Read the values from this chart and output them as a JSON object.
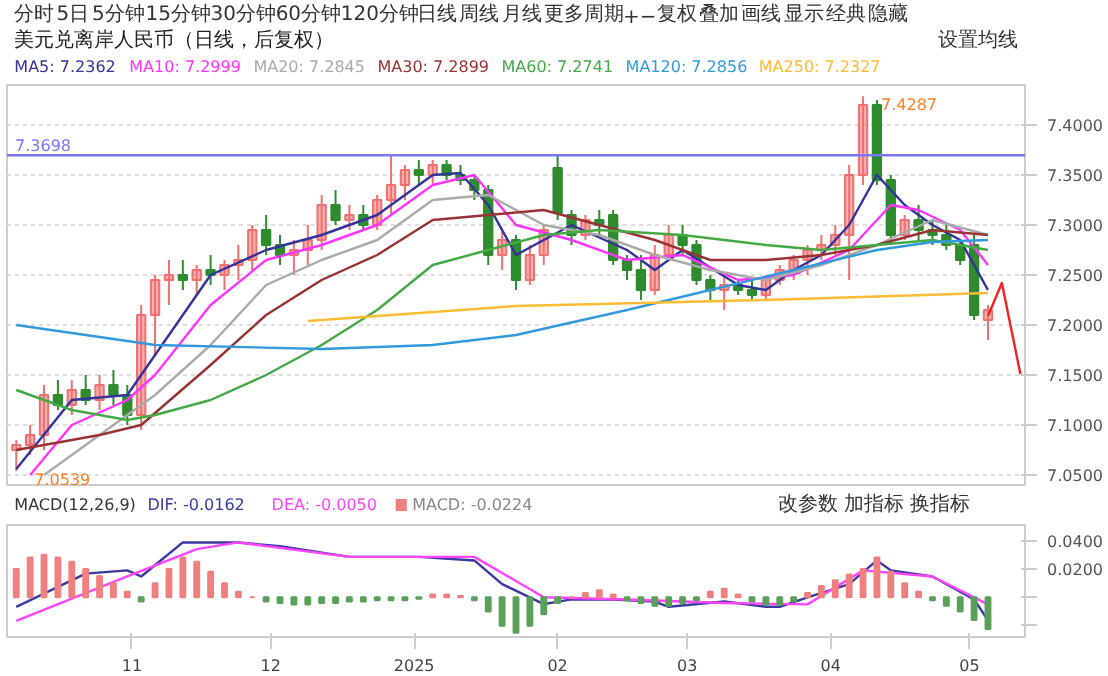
{
  "chart_data": [
    {
      "type": "candlestick",
      "title": "美元兑离岸人民币（日线，后复权）",
      "annotations": [
        "分时",
        "5日",
        "5分钟",
        "15分钟",
        "30分钟",
        "60分钟",
        "120分钟",
        "日线",
        "周线",
        "月线",
        "更多周期",
        "+",
        "−",
        "复权",
        "叠加",
        "画线",
        "显示",
        "经典",
        "隐藏",
        "设置均线",
        {
          "text": "7.4287",
          "x": "2025-04-08",
          "y": 7.4287
        },
        {
          "text": "7.0539",
          "x": "2024-10-07",
          "y": 7.0539
        }
      ],
      "x": [
        "2024-10-07",
        "2024-10-10",
        "2024-10-13",
        "2024-10-16",
        "2024-10-19",
        "2024-10-22",
        "2024-10-25",
        "2024-10-28",
        "2024-10-31",
        "2024-11-03",
        "2024-11-06",
        "2024-11-09",
        "2024-11-12",
        "2024-11-15",
        "2024-11-18",
        "2024-11-21",
        "2024-11-24",
        "2024-11-27",
        "2024-11-30",
        "2024-12-03",
        "2024-12-06",
        "2024-12-09",
        "2024-12-12",
        "2024-12-15",
        "2024-12-18",
        "2024-12-21",
        "2024-12-24",
        "2024-12-27",
        "2024-12-30",
        "2025-01-02",
        "2025-01-05",
        "2025-01-08",
        "2025-01-11",
        "2025-01-14",
        "2025-01-17",
        "2025-01-20",
        "2025-01-23",
        "2025-01-26",
        "2025-01-29",
        "2025-02-01",
        "2025-02-04",
        "2025-02-07",
        "2025-02-10",
        "2025-02-13",
        "2025-02-16",
        "2025-02-19",
        "2025-02-22",
        "2025-02-25",
        "2025-02-28",
        "2025-03-03",
        "2025-03-06",
        "2025-03-09",
        "2025-03-12",
        "2025-03-15",
        "2025-03-18",
        "2025-03-21",
        "2025-03-24",
        "2025-03-27",
        "2025-03-30",
        "2025-04-02",
        "2025-04-05",
        "2025-04-08",
        "2025-04-11",
        "2025-04-14",
        "2025-04-17",
        "2025-04-20",
        "2025-04-23",
        "2025-04-26",
        "2025-04-29",
        "2025-05-02",
        "2025-05-05"
      ],
      "ohlc": [
        [
          7.075,
          7.085,
          7.0539,
          7.08
        ],
        [
          7.08,
          7.1,
          7.07,
          7.09
        ],
        [
          7.09,
          7.14,
          7.075,
          7.13
        ],
        [
          7.13,
          7.145,
          7.115,
          7.12
        ],
        [
          7.12,
          7.145,
          7.11,
          7.135
        ],
        [
          7.135,
          7.15,
          7.12,
          7.125
        ],
        [
          7.125,
          7.15,
          7.115,
          7.14
        ],
        [
          7.14,
          7.155,
          7.12,
          7.13
        ],
        [
          7.13,
          7.14,
          7.1,
          7.11
        ],
        [
          7.11,
          7.22,
          7.095,
          7.21
        ],
        [
          7.21,
          7.25,
          7.17,
          7.245
        ],
        [
          7.245,
          7.265,
          7.22,
          7.25
        ],
        [
          7.25,
          7.265,
          7.235,
          7.245
        ],
        [
          7.245,
          7.26,
          7.23,
          7.255
        ],
        [
          7.255,
          7.27,
          7.24,
          7.25
        ],
        [
          7.25,
          7.265,
          7.235,
          7.26
        ],
        [
          7.26,
          7.28,
          7.245,
          7.265
        ],
        [
          7.265,
          7.3,
          7.255,
          7.295
        ],
        [
          7.295,
          7.31,
          7.27,
          7.28
        ],
        [
          7.28,
          7.29,
          7.26,
          7.27
        ],
        [
          7.27,
          7.285,
          7.25,
          7.275
        ],
        [
          7.275,
          7.3,
          7.26,
          7.285
        ],
        [
          7.285,
          7.33,
          7.275,
          7.32
        ],
        [
          7.32,
          7.335,
          7.3,
          7.305
        ],
        [
          7.305,
          7.32,
          7.295,
          7.31
        ],
        [
          7.31,
          7.32,
          7.295,
          7.3
        ],
        [
          7.3,
          7.33,
          7.295,
          7.325
        ],
        [
          7.325,
          7.37,
          7.31,
          7.34
        ],
        [
          7.34,
          7.36,
          7.325,
          7.355
        ],
        [
          7.355,
          7.365,
          7.34,
          7.35
        ],
        [
          7.35,
          7.365,
          7.34,
          7.36
        ],
        [
          7.36,
          7.365,
          7.345,
          7.35
        ],
        [
          7.35,
          7.36,
          7.34,
          7.345
        ],
        [
          7.345,
          7.35,
          7.325,
          7.335
        ],
        [
          7.335,
          7.34,
          7.26,
          7.27
        ],
        [
          7.27,
          7.295,
          7.255,
          7.285
        ],
        [
          7.285,
          7.29,
          7.235,
          7.245
        ],
        [
          7.245,
          7.28,
          7.24,
          7.27
        ],
        [
          7.27,
          7.3,
          7.26,
          7.295
        ],
        [
          7.357,
          7.37,
          7.305,
          7.312
        ],
        [
          7.31,
          7.315,
          7.28,
          7.29
        ],
        [
          7.29,
          7.31,
          7.285,
          7.305
        ],
        [
          7.305,
          7.315,
          7.29,
          7.3
        ],
        [
          7.31,
          7.315,
          7.26,
          7.265
        ],
        [
          7.265,
          7.27,
          7.245,
          7.255
        ],
        [
          7.255,
          7.27,
          7.225,
          7.235
        ],
        [
          7.235,
          7.28,
          7.23,
          7.27
        ],
        [
          7.27,
          7.3,
          7.265,
          7.29
        ],
        [
          7.29,
          7.3,
          7.27,
          7.28
        ],
        [
          7.28,
          7.285,
          7.24,
          7.245
        ],
        [
          7.245,
          7.25,
          7.225,
          7.235
        ],
        [
          7.235,
          7.25,
          7.215,
          7.24
        ],
        [
          7.24,
          7.245,
          7.23,
          7.235
        ],
        [
          7.235,
          7.245,
          7.225,
          7.23
        ],
        [
          7.23,
          7.25,
          7.225,
          7.245
        ],
        [
          7.245,
          7.26,
          7.24,
          7.255
        ],
        [
          7.255,
          7.27,
          7.245,
          7.265
        ],
        [
          7.265,
          7.28,
          7.25,
          7.275
        ],
        [
          7.275,
          7.29,
          7.265,
          7.28
        ],
        [
          7.28,
          7.3,
          7.27,
          7.29
        ],
        [
          7.29,
          7.36,
          7.245,
          7.35
        ],
        [
          7.35,
          7.4287,
          7.34,
          7.42
        ],
        [
          7.42,
          7.425,
          7.34,
          7.345
        ],
        [
          7.345,
          7.35,
          7.28,
          7.29
        ],
        [
          7.29,
          7.31,
          7.285,
          7.305
        ],
        [
          7.305,
          7.32,
          7.285,
          7.295
        ],
        [
          7.295,
          7.305,
          7.28,
          7.29
        ],
        [
          7.29,
          7.3,
          7.275,
          7.28
        ],
        [
          7.28,
          7.285,
          7.26,
          7.265
        ],
        [
          7.28,
          7.29,
          7.205,
          7.21
        ],
        [
          7.205,
          7.22,
          7.185,
          7.215
        ]
      ],
      "colors": [
        "#f07070",
        "#f07070",
        "#f07070",
        "#2e8b2e",
        "#f07070",
        "#2e8b2e",
        "#f07070",
        "#2e8b2e",
        "#2e8b2e",
        "#f07070",
        "#f07070",
        "#f07070",
        "#2e8b2e",
        "#f07070",
        "#2e8b2e",
        "#f07070",
        "#f07070",
        "#f07070",
        "#2e8b2e",
        "#2e8b2e",
        "#f07070",
        "#f07070",
        "#f07070",
        "#2e8b2e",
        "#f07070",
        "#2e8b2e",
        "#f07070",
        "#f07070",
        "#f07070",
        "#2e8b2e",
        "#f07070",
        "#2e8b2e",
        "#2e8b2e",
        "#2e8b2e",
        "#2e8b2e",
        "#f07070",
        "#2e8b2e",
        "#f07070",
        "#f07070",
        "#2e8b2e",
        "#2e8b2e",
        "#f07070",
        "#2e8b2e",
        "#2e8b2e",
        "#2e8b2e",
        "#2e8b2e",
        "#f07070",
        "#f07070",
        "#2e8b2e",
        "#2e8b2e",
        "#2e8b2e",
        "#f07070",
        "#2e8b2e",
        "#2e8b2e",
        "#f07070",
        "#f07070",
        "#f07070",
        "#f07070",
        "#f07070",
        "#f07070",
        "#f07070",
        "#f07070",
        "#2e8b2e",
        "#2e8b2e",
        "#f07070",
        "#2e8b2e",
        "#2e8b2e",
        "#2e8b2e",
        "#2e8b2e",
        "#2e8b2e",
        "#f07070"
      ],
      "series": [
        {
          "type": "line",
          "name": "MA5: 7.2362",
          "color": "#33339a",
          "x": [
            "2024-10-07",
            "2024-10-19",
            "2024-10-31",
            "2024-11-06",
            "2024-11-18",
            "2024-11-30",
            "2024-12-12",
            "2024-12-24",
            "2025-01-05",
            "2025-01-11",
            "2025-01-17",
            "2025-01-23",
            "2025-02-04",
            "2025-02-16",
            "2025-02-22",
            "2025-02-28",
            "2025-03-12",
            "2025-03-18",
            "2025-03-24",
            "2025-03-30",
            "2025-04-05",
            "2025-04-11",
            "2025-04-17",
            "2025-04-23",
            "2025-04-29",
            "2025-05-05"
          ],
          "values": [
            7.056,
            7.125,
            7.13,
            7.17,
            7.25,
            7.275,
            7.29,
            7.31,
            7.35,
            7.352,
            7.32,
            7.27,
            7.3,
            7.275,
            7.255,
            7.275,
            7.24,
            7.235,
            7.255,
            7.27,
            7.3,
            7.35,
            7.32,
            7.3,
            7.285,
            7.235
          ]
        },
        {
          "type": "line",
          "name": "MA10: 7.2999",
          "color": "#ff33ff",
          "x": [
            "2024-10-10",
            "2024-10-19",
            "2024-10-31",
            "2024-11-06",
            "2024-11-18",
            "2024-11-30",
            "2024-12-12",
            "2024-12-24",
            "2025-01-05",
            "2025-01-14",
            "2025-01-23",
            "2025-02-04",
            "2025-02-16",
            "2025-02-28",
            "2025-03-12",
            "2025-03-24",
            "2025-04-05",
            "2025-04-14",
            "2025-04-20",
            "2025-04-29",
            "2025-05-05"
          ],
          "values": [
            7.05,
            7.1,
            7.125,
            7.15,
            7.22,
            7.265,
            7.28,
            7.3,
            7.34,
            7.35,
            7.3,
            7.285,
            7.265,
            7.27,
            7.245,
            7.25,
            7.275,
            7.32,
            7.315,
            7.295,
            7.26
          ]
        },
        {
          "type": "line",
          "name": "MA20: 7.2845",
          "color": "#aaaaaa",
          "x": [
            "2024-10-13",
            "2024-10-25",
            "2024-11-06",
            "2024-11-18",
            "2024-11-30",
            "2024-12-12",
            "2024-12-24",
            "2025-01-05",
            "2025-01-17",
            "2025-01-29",
            "2025-02-10",
            "2025-02-22",
            "2025-03-06",
            "2025-03-18",
            "2025-03-30",
            "2025-04-11",
            "2025-04-23",
            "2025-05-05"
          ],
          "values": [
            7.05,
            7.09,
            7.13,
            7.18,
            7.24,
            7.265,
            7.285,
            7.325,
            7.33,
            7.3,
            7.29,
            7.27,
            7.255,
            7.245,
            7.26,
            7.28,
            7.305,
            7.29
          ]
        },
        {
          "type": "line",
          "name": "MA30: 7.2899",
          "color": "#993333",
          "x": [
            "2024-10-07",
            "2024-10-25",
            "2024-11-03",
            "2024-11-18",
            "2024-11-30",
            "2024-12-12",
            "2024-12-24",
            "2025-01-05",
            "2025-01-17",
            "2025-01-29",
            "2025-02-10",
            "2025-02-22",
            "2025-03-06",
            "2025-03-18",
            "2025-03-30",
            "2025-04-11",
            "2025-04-23",
            "2025-05-05"
          ],
          "values": [
            7.075,
            7.09,
            7.1,
            7.16,
            7.21,
            7.245,
            7.27,
            7.305,
            7.31,
            7.315,
            7.3,
            7.285,
            7.265,
            7.265,
            7.27,
            7.28,
            7.295,
            7.29
          ]
        },
        {
          "type": "line",
          "name": "MA60: 7.2741",
          "color": "#44aa44",
          "x": [
            "2024-10-07",
            "2024-10-19",
            "2024-10-31",
            "2024-11-06",
            "2024-11-18",
            "2024-11-30",
            "2024-12-12",
            "2024-12-24",
            "2025-01-05",
            "2025-01-17",
            "2025-01-29",
            "2025-02-10",
            "2025-02-28",
            "2025-03-18",
            "2025-03-30",
            "2025-04-11",
            "2025-04-23",
            "2025-05-05"
          ],
          "values": [
            7.135,
            7.115,
            7.105,
            7.11,
            7.125,
            7.15,
            7.18,
            7.215,
            7.26,
            7.275,
            7.29,
            7.295,
            7.29,
            7.28,
            7.275,
            7.28,
            7.285,
            7.275
          ]
        },
        {
          "type": "line",
          "name": "MA120: 7.2856",
          "color": "#3399dd",
          "x": [
            "2024-10-07",
            "2024-11-06",
            "2024-12-12",
            "2025-01-05",
            "2025-01-23",
            "2025-02-16",
            "2025-03-06",
            "2025-03-24",
            "2025-04-11",
            "2025-04-23",
            "2025-05-05"
          ],
          "values": [
            7.2,
            7.18,
            7.176,
            7.18,
            7.19,
            7.215,
            7.235,
            7.255,
            7.275,
            7.283,
            7.285
          ]
        },
        {
          "type": "line",
          "name": "MA250: 7.2327",
          "color": "#ffbb33",
          "x": [
            "2024-12-09",
            "2025-01-23",
            "2025-03-18",
            "2025-05-05"
          ],
          "values": [
            7.204,
            7.219,
            7.225,
            7.232
          ]
        },
        {
          "type": "line",
          "color": "#ee2222",
          "x": [
            "2025-05-05",
            "2025-05-08",
            "2025-05-12"
          ],
          "values": [
            7.209,
            7.242,
            7.151
          ]
        }
      ],
      "ref_lines": [
        {
          "axis": "y",
          "value": 7.3698,
          "label": "7.3698",
          "color": "#7777ff"
        }
      ],
      "xlim": [
        "2024-10-05",
        "2025-05-13"
      ],
      "ylim": [
        7.04,
        7.44
      ],
      "yticks": [
        {
          "value": 7.05,
          "label": "7.0500"
        },
        {
          "value": 7.1,
          "label": "7.1000"
        },
        {
          "value": 7.15,
          "label": "7.1500"
        },
        {
          "value": 7.2,
          "label": "7.2000"
        },
        {
          "value": 7.25,
          "label": "7.2500"
        },
        {
          "value": 7.3,
          "label": "7.3000"
        },
        {
          "value": 7.35,
          "label": "7.3500"
        },
        {
          "value": 7.4,
          "label": "7.4000"
        }
      ],
      "tick_labels": "y",
      "grid": "y",
      "legend": "top"
    },
    {
      "type": "bar",
      "title": "MACD(12,26,9)",
      "annotations": [
        "改参数",
        "加指标",
        "换指标"
      ],
      "x": [
        "2024-10-07",
        "2024-10-10",
        "2024-10-13",
        "2024-10-16",
        "2024-10-19",
        "2024-10-22",
        "2024-10-25",
        "2024-10-28",
        "2024-10-31",
        "2024-11-03",
        "2024-11-06",
        "2024-11-09",
        "2024-11-12",
        "2024-11-15",
        "2024-11-18",
        "2024-11-21",
        "2024-11-24",
        "2024-11-27",
        "2024-11-30",
        "2024-12-03",
        "2024-12-06",
        "2024-12-09",
        "2024-12-12",
        "2024-12-15",
        "2024-12-18",
        "2024-12-21",
        "2024-12-24",
        "2024-12-27",
        "2024-12-30",
        "2025-01-02",
        "2025-01-05",
        "2025-01-08",
        "2025-01-11",
        "2025-01-14",
        "2025-01-17",
        "2025-01-20",
        "2025-01-23",
        "2025-01-26",
        "2025-01-29",
        "2025-02-01",
        "2025-02-04",
        "2025-02-07",
        "2025-02-10",
        "2025-02-13",
        "2025-02-16",
        "2025-02-19",
        "2025-02-22",
        "2025-02-25",
        "2025-02-28",
        "2025-03-03",
        "2025-03-06",
        "2025-03-09",
        "2025-03-12",
        "2025-03-15",
        "2025-03-18",
        "2025-03-21",
        "2025-03-24",
        "2025-03-27",
        "2025-03-30",
        "2025-04-02",
        "2025-04-05",
        "2025-04-08",
        "2025-04-11",
        "2025-04-14",
        "2025-04-17",
        "2025-04-20",
        "2025-04-23",
        "2025-04-26",
        "2025-04-29",
        "2025-05-02",
        "2025-05-05"
      ],
      "series": [
        {
          "name": "DIF: -0.0162",
          "type": "line",
          "color": "#3a3aa0",
          "x": [
            "2024-10-07",
            "2024-10-22",
            "2024-10-31",
            "2024-11-03",
            "2024-11-12",
            "2024-11-24",
            "2024-12-03",
            "2024-12-18",
            "2025-01-02",
            "2025-01-14",
            "2025-01-20",
            "2025-01-29",
            "2025-02-04",
            "2025-02-13",
            "2025-02-22",
            "2025-02-25",
            "2025-03-09",
            "2025-03-18",
            "2025-03-21",
            "2025-03-27",
            "2025-04-05",
            "2025-04-11",
            "2025-04-14",
            "2025-04-23",
            "2025-05-02",
            "2025-05-05"
          ],
          "values": [
            -0.0067,
            0.0167,
            0.019,
            0.0147,
            0.0387,
            0.0387,
            0.036,
            0.0285,
            0.0285,
            0.026,
            0.0093,
            -0.0048,
            -0.0015,
            -0.0015,
            -0.003,
            -0.0067,
            -0.003,
            -0.0067,
            -0.0067,
            0.0,
            0.0093,
            0.026,
            0.019,
            0.0147,
            -0.0015,
            -0.0162
          ]
        },
        {
          "name": "DEA: -0.0050",
          "type": "line",
          "color": "#ff44ff",
          "x": [
            "2024-10-07",
            "2024-10-31",
            "2024-11-15",
            "2024-11-24",
            "2024-12-18",
            "2025-01-14",
            "2025-01-29",
            "2025-02-16",
            "2025-03-09",
            "2025-03-27",
            "2025-04-08",
            "2025-04-23",
            "2025-05-05"
          ],
          "values": [
            -0.0167,
            0.0147,
            0.034,
            0.0387,
            0.0285,
            0.0285,
            0.0,
            -0.0015,
            -0.004,
            -0.005,
            0.019,
            0.0147,
            -0.005
          ]
        },
        {
          "name": "MACD: -0.0224",
          "values": [
            0.02,
            0.028,
            0.03,
            0.028,
            0.025,
            0.02,
            0.015,
            0.01,
            0.004,
            -0.003,
            0.01,
            0.02,
            0.028,
            0.025,
            0.018,
            0.01,
            0.004,
            0.0,
            -0.003,
            -0.004,
            -0.005,
            -0.005,
            -0.004,
            -0.004,
            -0.003,
            -0.003,
            -0.002,
            -0.002,
            -0.002,
            -0.001,
            0.002,
            0.002,
            0.001,
            -0.002,
            -0.01,
            -0.02,
            -0.025,
            -0.02,
            -0.012,
            -0.004,
            0.0,
            0.003,
            0.005,
            0.002,
            -0.002,
            -0.004,
            -0.006,
            -0.006,
            -0.004,
            -0.002,
            0.004,
            0.006,
            0.002,
            -0.003,
            -0.005,
            -0.005,
            -0.003,
            0.003,
            0.008,
            0.012,
            0.016,
            0.02,
            0.028,
            0.018,
            0.01,
            0.004,
            -0.002,
            -0.006,
            -0.01,
            -0.016,
            -0.0224
          ],
          "colors": [
            "#f08080",
            "#f08080",
            "#f08080",
            "#f08080",
            "#f08080",
            "#f08080",
            "#f08080",
            "#f08080",
            "#f08080",
            "#5aa05a",
            "#f08080",
            "#f08080",
            "#f08080",
            "#f08080",
            "#f08080",
            "#f08080",
            "#f08080",
            "#f08080",
            "#5aa05a",
            "#5aa05a",
            "#5aa05a",
            "#5aa05a",
            "#5aa05a",
            "#5aa05a",
            "#5aa05a",
            "#5aa05a",
            "#5aa05a",
            "#5aa05a",
            "#5aa05a",
            "#5aa05a",
            "#f08080",
            "#f08080",
            "#f08080",
            "#5aa05a",
            "#5aa05a",
            "#5aa05a",
            "#5aa05a",
            "#5aa05a",
            "#5aa05a",
            "#5aa05a",
            "#f08080",
            "#f08080",
            "#f08080",
            "#f08080",
            "#5aa05a",
            "#5aa05a",
            "#5aa05a",
            "#5aa05a",
            "#5aa05a",
            "#5aa05a",
            "#f08080",
            "#f08080",
            "#f08080",
            "#5aa05a",
            "#5aa05a",
            "#5aa05a",
            "#5aa05a",
            "#f08080",
            "#f08080",
            "#f08080",
            "#f08080",
            "#f08080",
            "#f08080",
            "#f08080",
            "#f08080",
            "#f08080",
            "#5aa05a",
            "#5aa05a",
            "#5aa05a",
            "#5aa05a",
            "#5aa05a"
          ]
        }
      ],
      "xlim": [
        "2024-10-05",
        "2025-05-13"
      ],
      "xticks": [
        {
          "value": "2024-11-01",
          "label": "11"
        },
        {
          "value": "2024-12-01",
          "label": "12"
        },
        {
          "value": "2025-01-01",
          "label": "2025"
        },
        {
          "value": "2025-02-01",
          "label": "02"
        },
        {
          "value": "2025-03-01",
          "label": "03"
        },
        {
          "value": "2025-04-01",
          "label": "04"
        },
        {
          "value": "2025-05-01",
          "label": "05"
        }
      ],
      "ylim": [
        -0.028,
        0.051
      ],
      "yticks": [
        {
          "value": 0.04,
          "label": "0.0400"
        },
        {
          "value": 0.02,
          "label": "0.0200"
        },
        {
          "value": 0,
          "label": null
        },
        {
          "value": -0.02,
          "label": null
        }
      ],
      "legend": "top"
    }
  ]
}
